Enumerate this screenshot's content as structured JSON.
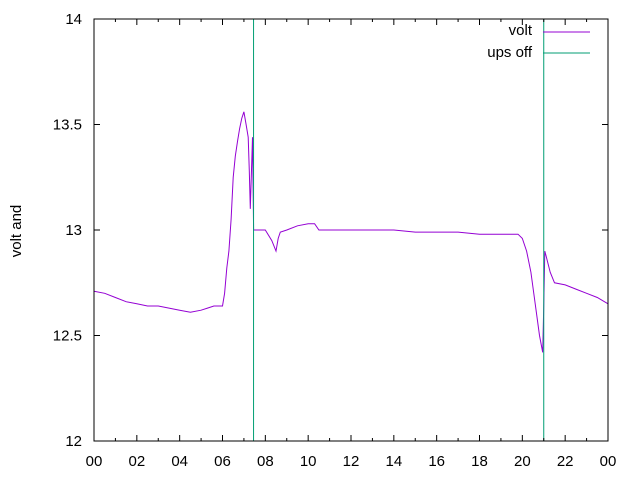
{
  "chart_data": {
    "type": "line",
    "title": "",
    "xlabel": "",
    "ylabel": "volt and",
    "xlim": [
      0,
      24
    ],
    "ylim": [
      12,
      14
    ],
    "x_ticks": [
      "00",
      "02",
      "04",
      "06",
      "08",
      "10",
      "12",
      "14",
      "16",
      "18",
      "20",
      "22",
      "00"
    ],
    "y_ticks": [
      "12",
      "12.5",
      "13",
      "13.5",
      "14"
    ],
    "grid": false,
    "legend_position": "top-right",
    "series": [
      {
        "name": "volt",
        "color": "#9400d3",
        "x": [
          0,
          0.5,
          1,
          1.5,
          2,
          2.5,
          3,
          3.5,
          4,
          4.5,
          5,
          5.3,
          5.6,
          6,
          6.1,
          6.2,
          6.3,
          6.4,
          6.5,
          6.6,
          6.7,
          6.8,
          6.9,
          7.0,
          7.1,
          7.2,
          7.25,
          7.3,
          7.4,
          7.45,
          7.5,
          7.6,
          7.7,
          7.8,
          8.0,
          8.3,
          8.5,
          8.6,
          8.7,
          9.0,
          9.5,
          10.0,
          10.3,
          10.5,
          11.0,
          12,
          13,
          14,
          15,
          16,
          17,
          18,
          19,
          19.5,
          19.8,
          20.0,
          20.2,
          20.4,
          20.6,
          20.8,
          20.95,
          21.0,
          21.05,
          21.1,
          21.3,
          21.5,
          22,
          22.5,
          23,
          23.5,
          24
        ],
        "y": [
          12.71,
          12.7,
          12.68,
          12.66,
          12.65,
          12.64,
          12.64,
          12.63,
          12.62,
          12.61,
          12.62,
          12.63,
          12.64,
          12.64,
          12.7,
          12.82,
          12.9,
          13.05,
          13.25,
          13.35,
          13.42,
          13.48,
          13.53,
          13.56,
          13.5,
          13.44,
          13.28,
          13.1,
          13.44,
          13.0,
          13.0,
          13.0,
          13.0,
          13.0,
          13.0,
          12.95,
          12.9,
          12.96,
          12.99,
          13.0,
          13.02,
          13.03,
          13.03,
          13.0,
          13.0,
          13.0,
          13.0,
          13.0,
          12.99,
          12.99,
          12.99,
          12.98,
          12.98,
          12.98,
          12.98,
          12.96,
          12.9,
          12.8,
          12.65,
          12.5,
          12.42,
          12.65,
          12.9,
          12.88,
          12.8,
          12.75,
          12.74,
          12.72,
          12.7,
          12.68,
          12.65
        ]
      },
      {
        "name": "ups off",
        "color": "#009e73",
        "vertical_lines_x": [
          7.45,
          21.0
        ]
      }
    ]
  }
}
